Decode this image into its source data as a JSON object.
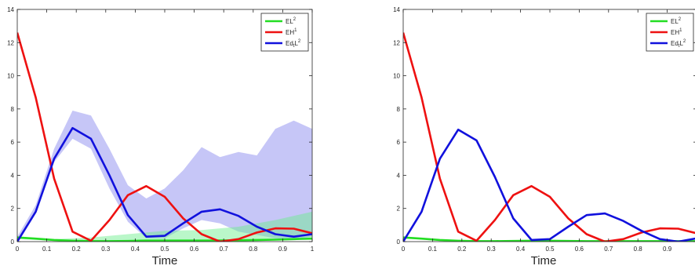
{
  "chart_data": [
    {
      "type": "line",
      "title": "",
      "xlabel": "Time",
      "ylabel": "",
      "xlim": [
        0,
        1
      ],
      "ylim": [
        0,
        14
      ],
      "x_ticks": [
        "0",
        "0.1",
        "0.2",
        "0.3",
        "0.4",
        "0.5",
        "0.6",
        "0.7",
        "0.8",
        "0.9",
        "1"
      ],
      "y_ticks": [
        "0",
        "2",
        "4",
        "6",
        "8",
        "10",
        "12",
        "14"
      ],
      "grid": false,
      "legend_position": "top-right",
      "legend": [
        {
          "label_main": "EL",
          "label_sup": "2",
          "color": "#22dd22"
        },
        {
          "label_main": "EH",
          "label_sup": "1",
          "color": "#ee1111"
        },
        {
          "label_main": "Ed",
          "label_sub": "t",
          "label_tail": "L",
          "label_sup": "2",
          "color": "#1111dd"
        }
      ],
      "bands": [
        {
          "color": "#8080ee",
          "opacity": 0.45,
          "x": [
            0,
            0.0625,
            0.125,
            0.1875,
            0.25,
            0.3125,
            0.375,
            0.4375,
            0.5,
            0.5625,
            0.625,
            0.6875,
            0.75,
            0.8125,
            0.875,
            0.9375,
            1
          ],
          "lower": [
            0,
            1.8,
            4.8,
            6.2,
            5.6,
            3.2,
            1.2,
            0.2,
            0.2,
            0.8,
            1.3,
            1.1,
            0.6,
            0.4,
            0.2,
            0.15,
            0.3
          ],
          "upper": [
            0.3,
            2.2,
            5.6,
            7.9,
            7.6,
            5.6,
            3.4,
            2.6,
            3.2,
            4.3,
            5.7,
            5.1,
            5.4,
            5.2,
            6.8,
            7.3,
            6.8
          ]
        },
        {
          "color": "#66ee88",
          "opacity": 0.45,
          "x": [
            0,
            0.125,
            0.25,
            0.375,
            0.5,
            0.625,
            0.75,
            0.875,
            1
          ],
          "lower": [
            0.15,
            0.05,
            0.02,
            0.05,
            0.08,
            0.1,
            0.12,
            0.15,
            0.2
          ],
          "upper": [
            0.3,
            0.15,
            0.25,
            0.45,
            0.65,
            0.7,
            0.9,
            1.3,
            1.8
          ]
        }
      ],
      "series": [
        {
          "name": "EL2",
          "color": "#22dd22",
          "x": [
            0,
            0.0625,
            0.125,
            0.1875,
            0.25,
            0.3125,
            0.375,
            0.4375,
            0.5,
            0.5625,
            0.625,
            0.6875,
            0.75,
            0.8125,
            0.875,
            0.9375,
            1
          ],
          "values": [
            0.25,
            0.18,
            0.1,
            0.05,
            0.03,
            0.03,
            0.04,
            0.06,
            0.06,
            0.06,
            0.06,
            0.07,
            0.08,
            0.1,
            0.12,
            0.15,
            0.18
          ]
        },
        {
          "name": "EH1",
          "color": "#ee1111",
          "x": [
            0,
            0.0625,
            0.125,
            0.1875,
            0.25,
            0.3125,
            0.375,
            0.4375,
            0.5,
            0.5625,
            0.625,
            0.6875,
            0.75,
            0.8125,
            0.875,
            0.9375,
            1
          ],
          "values": [
            12.6,
            8.7,
            3.8,
            0.6,
            0.05,
            1.3,
            2.8,
            3.35,
            2.7,
            1.4,
            0.45,
            0.0,
            0.15,
            0.55,
            0.8,
            0.78,
            0.5
          ]
        },
        {
          "name": "EdtL2",
          "color": "#1111dd",
          "x": [
            0,
            0.0625,
            0.125,
            0.1875,
            0.25,
            0.3125,
            0.375,
            0.4375,
            0.5,
            0.5625,
            0.625,
            0.6875,
            0.75,
            0.8125,
            0.875,
            0.9375,
            1
          ],
          "values": [
            0.0,
            1.8,
            5.0,
            6.85,
            6.2,
            4.0,
            1.6,
            0.3,
            0.35,
            1.1,
            1.8,
            1.95,
            1.55,
            0.9,
            0.45,
            0.3,
            0.45
          ]
        }
      ]
    },
    {
      "type": "line",
      "title": "",
      "xlabel": "Time",
      "ylabel": "",
      "xlim": [
        0,
        1
      ],
      "ylim": [
        0,
        14
      ],
      "x_ticks": [
        "0",
        "0.1",
        "0.2",
        "0.3",
        "0.4",
        "0.5",
        "0.6",
        "0.7",
        "0.8",
        "0.9"
      ],
      "y_ticks": [
        "0",
        "2",
        "4",
        "6",
        "8",
        "10",
        "12",
        "14"
      ],
      "grid": false,
      "legend_position": "top-right",
      "legend": [
        {
          "label_main": "EL",
          "label_sup": "2",
          "color": "#22dd22"
        },
        {
          "label_main": "EH",
          "label_sup": "1",
          "color": "#ee1111"
        },
        {
          "label_main": "Ed",
          "label_sub": "t",
          "label_tail": "L",
          "label_sup": "2",
          "color": "#1111dd"
        }
      ],
      "bands": [],
      "series": [
        {
          "name": "EL2",
          "color": "#22dd22",
          "x": [
            0,
            0.0625,
            0.125,
            0.1875,
            0.25,
            0.3125,
            0.375,
            0.4375,
            0.5,
            0.5625,
            0.625,
            0.6875,
            0.75,
            0.8125,
            0.875,
            0.9375,
            1
          ],
          "values": [
            0.25,
            0.18,
            0.1,
            0.05,
            0.03,
            0.03,
            0.04,
            0.05,
            0.05,
            0.04,
            0.03,
            0.03,
            0.03,
            0.03,
            0.03,
            0.03,
            0.03
          ]
        },
        {
          "name": "EH1",
          "color": "#ee1111",
          "x": [
            0,
            0.0625,
            0.125,
            0.1875,
            0.25,
            0.3125,
            0.375,
            0.4375,
            0.5,
            0.5625,
            0.625,
            0.6875,
            0.75,
            0.8125,
            0.875,
            0.9375,
            1
          ],
          "values": [
            12.6,
            8.7,
            3.8,
            0.6,
            0.05,
            1.3,
            2.8,
            3.35,
            2.7,
            1.4,
            0.45,
            0.0,
            0.15,
            0.55,
            0.8,
            0.78,
            0.5
          ]
        },
        {
          "name": "EdtL2",
          "color": "#1111dd",
          "x": [
            0,
            0.0625,
            0.125,
            0.1875,
            0.25,
            0.3125,
            0.375,
            0.4375,
            0.5,
            0.5625,
            0.625,
            0.6875,
            0.75,
            0.8125,
            0.875,
            0.9375,
            1
          ],
          "values": [
            0.0,
            1.8,
            5.0,
            6.75,
            6.1,
            3.9,
            1.4,
            0.1,
            0.15,
            0.9,
            1.6,
            1.7,
            1.25,
            0.65,
            0.15,
            0.0,
            0.2
          ]
        }
      ]
    }
  ]
}
